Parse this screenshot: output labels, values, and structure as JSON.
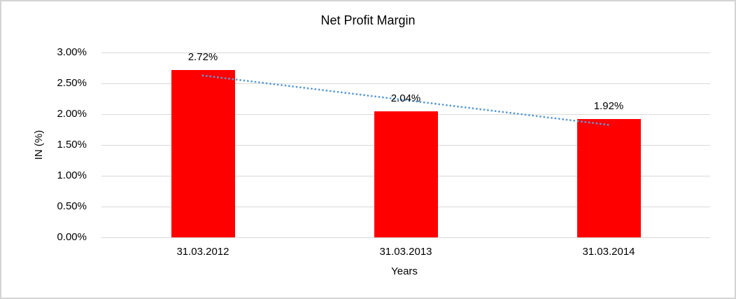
{
  "chart_data": {
    "type": "bar",
    "title": "Net Profit Margin",
    "xlabel": "Years",
    "ylabel": "IN (%)",
    "categories": [
      "31.03.2012",
      "31.03.2013",
      "31.03.2014"
    ],
    "values": [
      2.72,
      2.04,
      1.92
    ],
    "value_labels": [
      "2.72%",
      "2.04%",
      "1.92%"
    ],
    "ylim": [
      0,
      3
    ],
    "ytick_step": 0.5,
    "ytick_labels": [
      "0.00%",
      "0.50%",
      "1.00%",
      "1.50%",
      "2.00%",
      "2.50%",
      "3.00%"
    ],
    "grid": "horizontal",
    "legend": "none",
    "bar_color": "#ff0000",
    "gridline_color": "#d9d9d9",
    "axis_text_color": "#000000",
    "trendline": {
      "type": "linear",
      "style": "dotted",
      "color": "#5b9bd5"
    }
  }
}
